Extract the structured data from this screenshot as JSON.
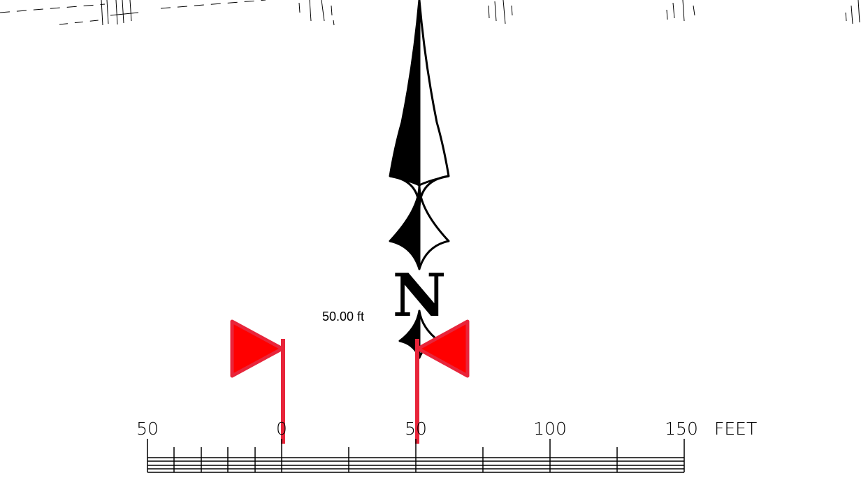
{
  "measurement": {
    "label": "50.00 ft",
    "marker_color": "#e8253a",
    "flag_fill": "#ff0000"
  },
  "north_arrow": {
    "letter": "N"
  },
  "scale_bar": {
    "labels": [
      "50",
      "0",
      "50",
      "100",
      "150"
    ],
    "unit": "FEET"
  }
}
